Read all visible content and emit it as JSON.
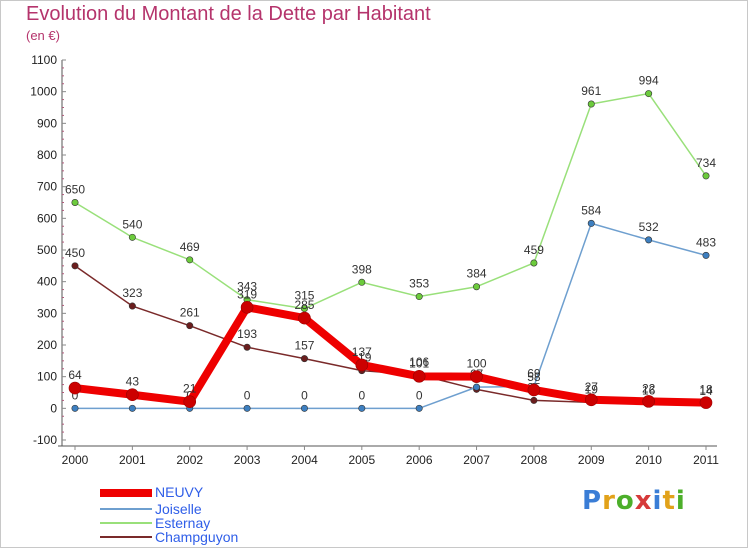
{
  "title": "Evolution du Montant de la Dette par Habitant",
  "subtitle": "(en €)",
  "chart_data": {
    "type": "line",
    "title": "Evolution du Montant de la Dette par Habitant",
    "ylabel": "(en €)",
    "xlabel": "",
    "x": [
      "2000",
      "2001",
      "2002",
      "2003",
      "2004",
      "2005",
      "2006",
      "2007",
      "2008",
      "2009",
      "2010",
      "2011"
    ],
    "ylim": [
      -100,
      1100
    ],
    "yticks": [
      -100,
      0,
      100,
      200,
      300,
      400,
      500,
      600,
      700,
      800,
      900,
      1000,
      1100
    ],
    "grid": false,
    "legend_position": "bottom-left",
    "series": [
      {
        "name": "Champguyon",
        "color": "#7a2a2a",
        "point_color": "#6b1e1e",
        "width": 1.5,
        "values": [
          450,
          323,
          261,
          193,
          157,
          119,
          106,
          60,
          25,
          19,
          16,
          14
        ]
      },
      {
        "name": "Esternay",
        "color": "#99e07a",
        "point_color": "#6ccb3c",
        "width": 1.5,
        "values": [
          650,
          540,
          469,
          343,
          315,
          398,
          353,
          384,
          459,
          961,
          994,
          734
        ]
      },
      {
        "name": "Joiselle",
        "color": "#6e9fcf",
        "point_color": "#3d7fc0",
        "width": 1.5,
        "values": [
          0,
          0,
          0,
          0,
          0,
          0,
          0,
          67,
          69,
          584,
          532,
          483
        ]
      },
      {
        "name": "NEUVY",
        "color": "#ee0000",
        "point_color": "#cc0000",
        "width": 8,
        "values": [
          64,
          43,
          21,
          319,
          285,
          137,
          101,
          100,
          58,
          27,
          22,
          18
        ]
      }
    ]
  },
  "legend": [
    {
      "name": "NEUVY",
      "color": "#ee0000"
    },
    {
      "name": "Joiselle",
      "color": "#6e9fcf"
    },
    {
      "name": "Esternay",
      "color": "#99e07a"
    },
    {
      "name": "Champguyon",
      "color": "#7a2a2a"
    }
  ],
  "logo": {
    "text": "Proxiti",
    "letter_colors": [
      "#3a7dd6",
      "#e2a21a",
      "#4caf2a",
      "#d63a3a",
      "#3a7dd6",
      "#e2a21a",
      "#4caf2a"
    ]
  }
}
